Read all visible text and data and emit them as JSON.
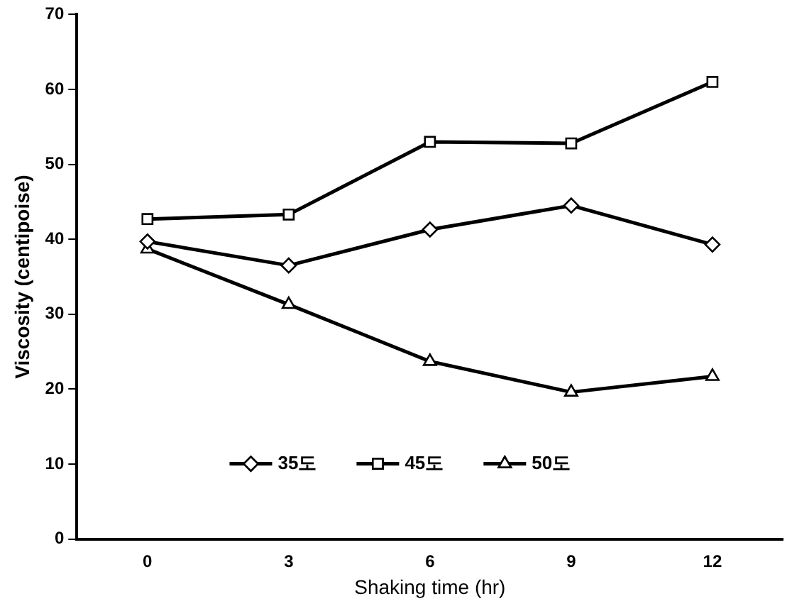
{
  "chart_data": {
    "type": "line",
    "xlabel": "Shaking time (hr)",
    "ylabel": "Viscosity (centipoise)",
    "categories": [
      "0",
      "3",
      "6",
      "9",
      "12"
    ],
    "ylim": [
      0,
      70
    ],
    "yticks": [
      0,
      10,
      20,
      30,
      40,
      50,
      60,
      70
    ],
    "grid": false,
    "legend": "bottom",
    "line_style": "solid",
    "series": [
      {
        "name": "35도",
        "color": "#000000",
        "marker": "diamond",
        "values": [
          39.7,
          36.5,
          41.3,
          44.5,
          39.3
        ]
      },
      {
        "name": "45도",
        "color": "#000000",
        "marker": "square",
        "values": [
          42.7,
          43.3,
          53.0,
          52.8,
          61.0
        ]
      },
      {
        "name": "50도",
        "color": "#000000",
        "marker": "triangle",
        "values": [
          38.7,
          31.3,
          23.7,
          19.6,
          21.7
        ]
      }
    ]
  }
}
